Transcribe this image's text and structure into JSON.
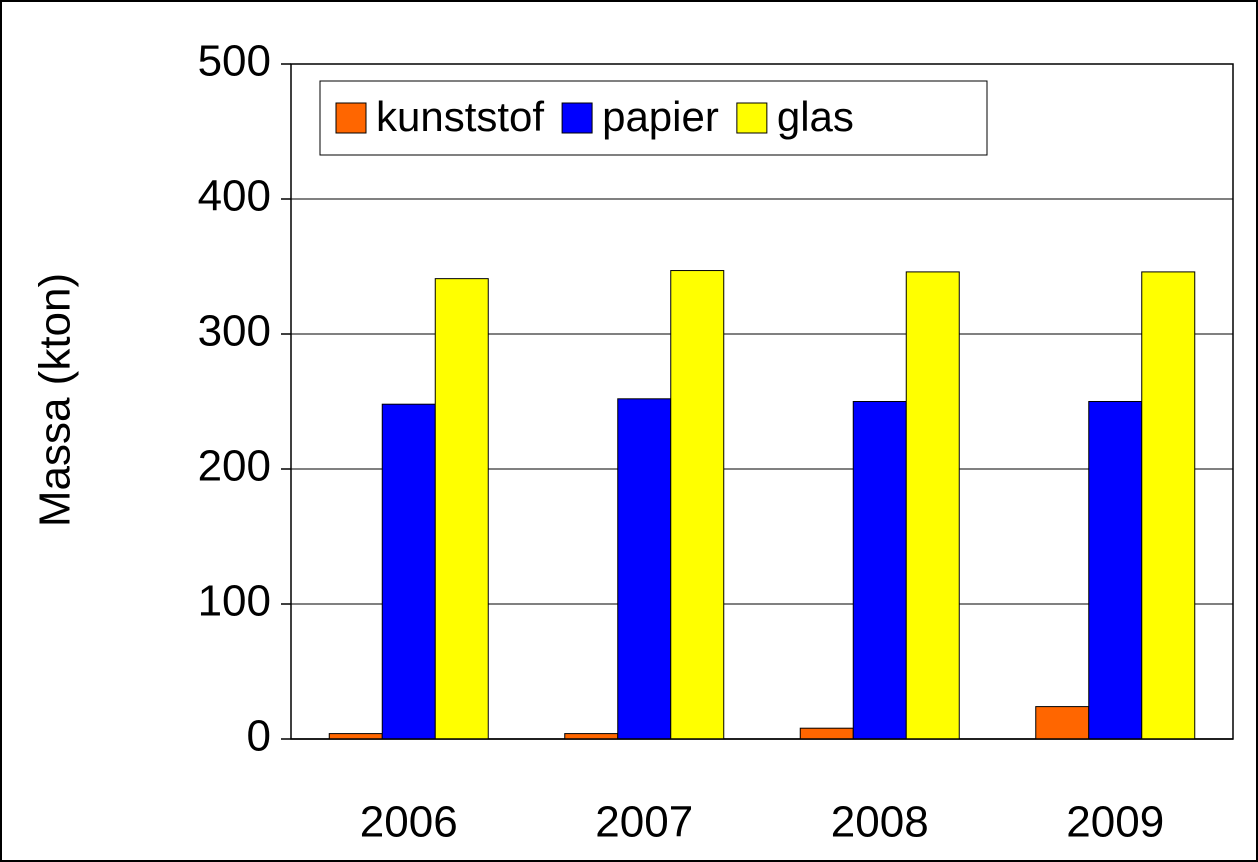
{
  "chart_data": {
    "type": "bar",
    "y_label": "Massa (kton)",
    "categories": [
      "2006",
      "2007",
      "2008",
      "2009"
    ],
    "series": [
      {
        "name": "kunststof",
        "color": "#ff6600",
        "values": [
          4,
          4,
          8,
          24
        ]
      },
      {
        "name": "papier",
        "color": "#0000ff",
        "values": [
          248,
          252,
          250,
          250
        ]
      },
      {
        "name": "glas",
        "color": "#ffff00",
        "values": [
          341,
          347,
          346,
          346
        ]
      }
    ],
    "ylim": [
      0,
      500
    ],
    "yticks": [
      0,
      100,
      200,
      300,
      400,
      500
    ],
    "grid": true,
    "legend": "top"
  }
}
